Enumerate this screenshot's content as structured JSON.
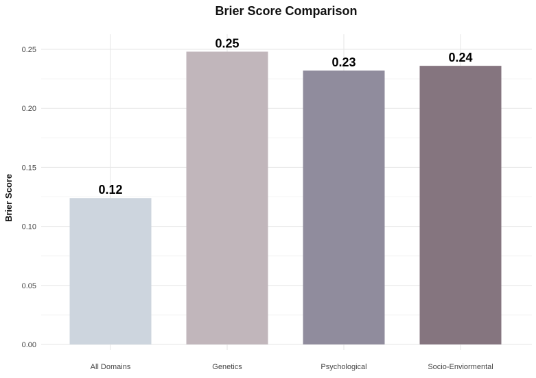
{
  "chart_data": {
    "type": "bar",
    "title": "Brier Score Comparison",
    "xlabel": "",
    "ylabel": "Brier Score",
    "categories": [
      "All Domains",
      "Genetics",
      "Psychological",
      "Socio-Enviormental"
    ],
    "values": [
      0.124,
      0.248,
      0.232,
      0.236
    ],
    "data_labels": [
      "0.12",
      "0.25",
      "0.23",
      "0.24"
    ],
    "colors": [
      "#cdd5de",
      "#c1b6bb",
      "#908c9d",
      "#85757f"
    ],
    "ylim": [
      0,
      0.26
    ],
    "yticks": [
      0.0,
      0.05,
      0.1,
      0.15,
      0.2,
      0.25
    ],
    "ytick_labels": [
      "0.00",
      "0.05",
      "0.10",
      "0.15",
      "0.20",
      "0.25"
    ],
    "grid": true,
    "legend": "none"
  }
}
